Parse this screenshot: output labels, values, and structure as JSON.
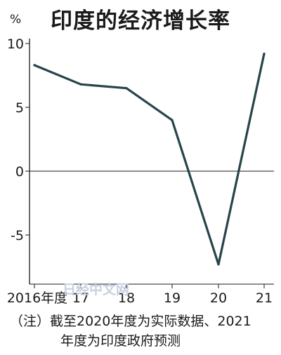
{
  "chart_data": {
    "type": "line",
    "title": "印度的经济增长率",
    "unit_label": "%",
    "x_tick_labels": [
      "2016年度",
      "17",
      "18",
      "19",
      "20",
      "21"
    ],
    "y_tick_labels": [
      "10",
      "5",
      "0",
      "-5"
    ],
    "ylim": [
      -9,
      10.5
    ],
    "series": [
      {
        "values": [
          8.3,
          6.8,
          6.5,
          4.0,
          -7.3,
          9.2
        ]
      }
    ],
    "grid": false,
    "line_color": "#27444b"
  },
  "watermark": "日经中文网",
  "note": {
    "line1": "（注）截至2020年度为实际数据、2021",
    "line2": "年度为印度政府预测"
  }
}
